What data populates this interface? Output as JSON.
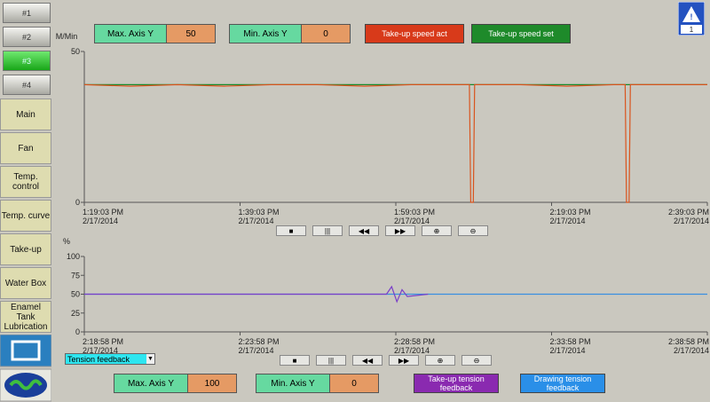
{
  "sidebar": {
    "buttons": [
      "#1",
      "#2",
      "#3",
      "#4"
    ],
    "menu": [
      "Main",
      "Fan",
      "Temp. control",
      "Temp. curve",
      "Take-up",
      "Water Box",
      "Enamel Tank Lubrication"
    ]
  },
  "alarm_count": "1",
  "upper_panel": {
    "max_label": "Max. Axis Y",
    "min_label": "Min. Axis Y"
  },
  "lower_panel": {
    "max_label": "Max. Axis Y",
    "min_label": "Min. Axis Y",
    "selector": "Tension feedback"
  },
  "chart_data": [
    {
      "type": "line",
      "y_label": "M/Min",
      "ylim": [
        0,
        50
      ],
      "yticks": [
        0,
        50
      ],
      "xlim": [
        "2014-02-17T13:19:03",
        "2014-02-17T14:39:03"
      ],
      "xticks": [
        {
          "value": "2014-02-17T13:19:03",
          "label": "1:19:03 PM",
          "date": "2/17/2014"
        },
        {
          "value": "2014-02-17T13:39:03",
          "label": "1:39:03 PM",
          "date": "2/17/2014"
        },
        {
          "value": "2014-02-17T13:59:03",
          "label": "1:59:03 PM",
          "date": "2/17/2014"
        },
        {
          "value": "2014-02-17T14:19:03",
          "label": "2:19:03 PM",
          "date": "2/17/2014"
        },
        {
          "value": "2014-02-17T14:39:03",
          "label": "2:39:03 PM",
          "date": "2/17/2014"
        }
      ],
      "x": [
        "2014-02-17T13:19:03",
        "2014-02-17T13:25:00",
        "2014-02-17T13:31:00",
        "2014-02-17T13:37:00",
        "2014-02-17T13:43:00",
        "2014-02-17T13:49:00",
        "2014-02-17T13:55:00",
        "2014-02-17T14:01:00",
        "2014-02-17T14:07:00",
        "2014-02-17T14:08:30",
        "2014-02-17T14:08:40",
        "2014-02-17T14:09:00",
        "2014-02-17T14:09:10",
        "2014-02-17T14:15:00",
        "2014-02-17T14:21:00",
        "2014-02-17T14:27:00",
        "2014-02-17T14:28:30",
        "2014-02-17T14:28:40",
        "2014-02-17T14:29:00",
        "2014-02-17T14:29:10",
        "2014-02-17T14:35:00",
        "2014-02-17T14:39:03"
      ],
      "series": [
        {
          "name": "Take-up speed set",
          "color": "#1a8a2a",
          "values": [
            39,
            39,
            39,
            39,
            39,
            39,
            39,
            39,
            39,
            39,
            39,
            39,
            39,
            39,
            39,
            39,
            39,
            39,
            39,
            39,
            39,
            39
          ]
        },
        {
          "name": "Take-up speed act",
          "color": "#d9541e",
          "values": [
            39,
            38.5,
            39,
            38.5,
            39,
            39,
            38.5,
            39,
            39,
            39,
            0,
            0,
            39,
            39,
            38.5,
            39,
            39,
            0,
            0,
            39,
            39,
            39
          ]
        }
      ]
    },
    {
      "type": "line",
      "y_label": "%",
      "ylim": [
        0,
        100
      ],
      "yticks": [
        0,
        25,
        50,
        75,
        100
      ],
      "xlim": [
        "2014-02-17T14:18:58",
        "2014-02-17T14:38:58"
      ],
      "xticks": [
        {
          "value": "2014-02-17T14:18:58",
          "label": "2:18:58 PM",
          "date": "2/17/2014"
        },
        {
          "value": "2014-02-17T14:23:58",
          "label": "2:23:58 PM",
          "date": "2/17/2014"
        },
        {
          "value": "2014-02-17T14:28:58",
          "label": "2:28:58 PM",
          "date": "2/17/2014"
        },
        {
          "value": "2014-02-17T14:33:58",
          "label": "2:33:58 PM",
          "date": "2/17/2014"
        },
        {
          "value": "2014-02-17T14:38:58",
          "label": "2:38:58 PM",
          "date": "2/17/2014"
        }
      ],
      "x": [
        "2014-02-17T14:18:58",
        "2014-02-17T14:21:00",
        "2014-02-17T14:24:00",
        "2014-02-17T14:27:00",
        "2014-02-17T14:28:40",
        "2014-02-17T14:28:50",
        "2014-02-17T14:29:00",
        "2014-02-17T14:29:10",
        "2014-02-17T14:29:20",
        "2014-02-17T14:30:00",
        "2014-02-17T14:33:00",
        "2014-02-17T14:36:00",
        "2014-02-17T14:38:58"
      ],
      "series": [
        {
          "name": "Drawing tension feedback",
          "color": "#3a8fe0",
          "values": [
            50,
            50,
            50,
            50,
            50,
            50,
            50,
            50,
            50,
            50,
            50,
            50,
            50
          ]
        },
        {
          "name": "Take-up tension feedback",
          "color": "#7a3fc8",
          "values": [
            50,
            50,
            50,
            50,
            50,
            60,
            40,
            56,
            47,
            50,
            null,
            null,
            null
          ]
        }
      ]
    }
  ]
}
